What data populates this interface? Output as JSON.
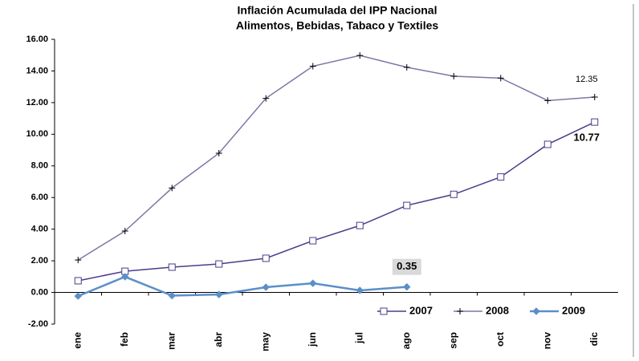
{
  "chart_data": {
    "type": "line",
    "title": [
      "Inflación Acumulada del IPP Nacional",
      "Alimentos, Bebidas, Tabaco y Textiles"
    ],
    "categories": [
      "ene",
      "feb",
      "mar",
      "abr",
      "may",
      "jun",
      "jul",
      "ago",
      "sep",
      "oct",
      "nov",
      "dic"
    ],
    "series": [
      {
        "name": "2007",
        "color": "#4b3c8c",
        "marker": "square",
        "values": [
          0.74,
          1.34,
          1.6,
          1.8,
          2.16,
          3.27,
          4.23,
          5.5,
          6.2,
          7.3,
          9.36,
          10.77
        ]
      },
      {
        "name": "2008",
        "color": "#7f76a6",
        "marker": "plus",
        "values": [
          2.05,
          3.88,
          6.6,
          8.8,
          12.27,
          14.3,
          14.98,
          14.23,
          13.67,
          13.55,
          12.13,
          12.35
        ]
      },
      {
        "name": "2009",
        "color": "#5b8fc9",
        "marker": "diamond",
        "values": [
          -0.23,
          0.99,
          -0.2,
          -0.13,
          0.33,
          0.58,
          0.13,
          0.35,
          null,
          null,
          null,
          null
        ]
      }
    ],
    "ylim": [
      -2,
      16
    ],
    "yticks": [
      {
        "value": -2,
        "label": "-2.00"
      },
      {
        "value": 0,
        "label": "0.00"
      },
      {
        "value": 2,
        "label": "2.00"
      },
      {
        "value": 4,
        "label": "4.00"
      },
      {
        "value": 6,
        "label": "6.00"
      },
      {
        "value": 8,
        "label": "8.00"
      },
      {
        "value": 10,
        "label": "10.00"
      },
      {
        "value": 12,
        "label": "12.00"
      },
      {
        "value": 14,
        "label": "14.00"
      },
      {
        "value": 16,
        "label": "16.00"
      }
    ],
    "legend": "bottom-right"
  }
}
